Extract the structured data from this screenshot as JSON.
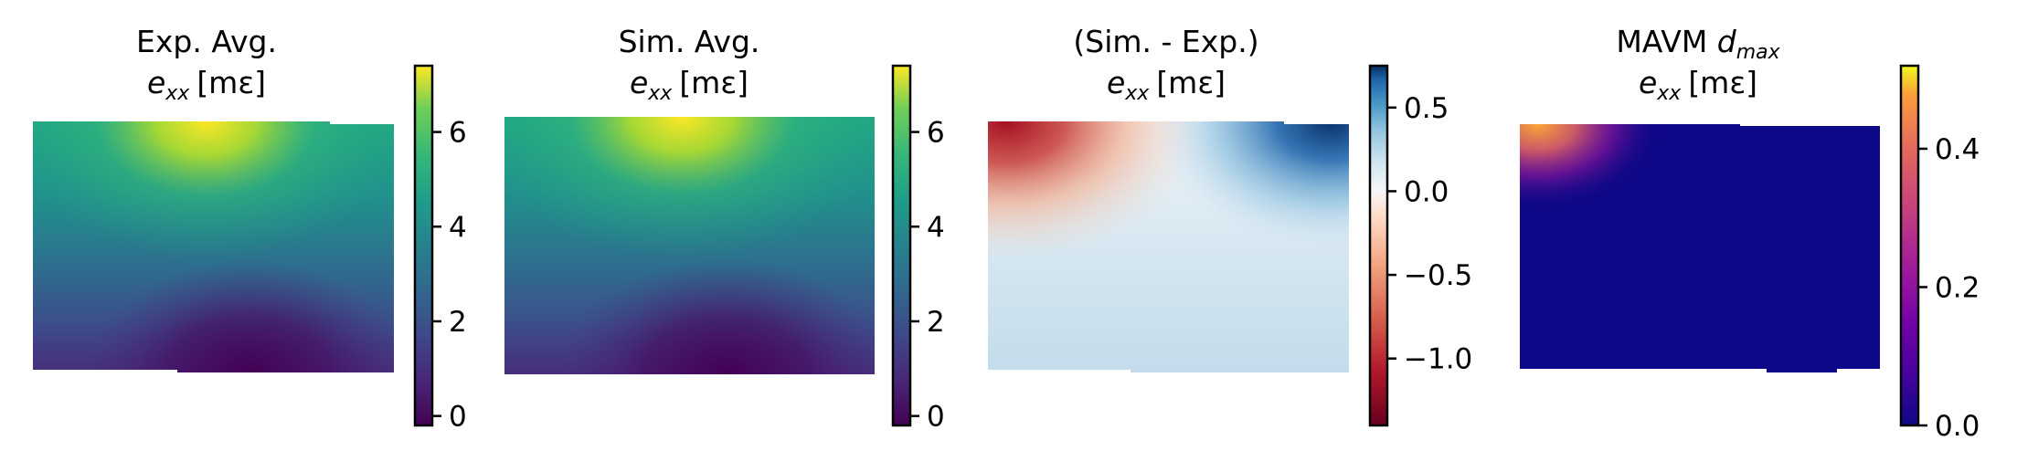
{
  "chart_data": [
    {
      "type": "heatmap",
      "title": "Exp. Avg.",
      "subtitle": "e",
      "subtitle_sub": "xx",
      "unit_text": "[mε]",
      "colormap": "viridis",
      "colorbar": {
        "range": [
          -0.2,
          7.4
        ],
        "ticks": [
          0,
          2,
          4,
          6
        ],
        "tick_labels": [
          "0",
          "2",
          "4",
          "6"
        ]
      },
      "field": {
        "description_values": {
          "top_center_max": 7.2,
          "center": 3.0,
          "bottom_center_min": -0.1
        }
      }
    },
    {
      "type": "heatmap",
      "title": "Sim. Avg.",
      "subtitle": "e",
      "subtitle_sub": "xx",
      "unit_text": "[mε]",
      "colormap": "viridis",
      "colorbar": {
        "range": [
          -0.2,
          7.4
        ],
        "ticks": [
          0,
          2,
          4,
          6
        ],
        "tick_labels": [
          "0",
          "2",
          "4",
          "6"
        ]
      },
      "field": {
        "description_values": {
          "top_center_max": 7.0,
          "center": 3.0,
          "bottom_center_min": -0.1
        }
      }
    },
    {
      "type": "heatmap",
      "title": "(Sim. - Exp.)",
      "subtitle": "e",
      "subtitle_sub": "xx",
      "unit_text": "[mε]",
      "colormap": "RdBu",
      "colorbar": {
        "range": [
          -1.4,
          0.75
        ],
        "ticks": [
          0.5,
          0.0,
          -0.5,
          -1.0
        ],
        "tick_labels": [
          "0.5",
          "0.0",
          "−0.5",
          "−1.0"
        ]
      },
      "field": {
        "description_values": {
          "top_left_min": -1.3,
          "top_right_max": 0.7,
          "lower_region": 0.2
        }
      }
    },
    {
      "type": "heatmap",
      "title": "MAVM ",
      "title_italic": "d",
      "title_sub": "max",
      "subtitle": "e",
      "subtitle_sub": "xx",
      "unit_text": "[mε]",
      "colormap": "plasma",
      "colorbar": {
        "range": [
          0.0,
          0.52
        ],
        "ticks": [
          0.4,
          0.2,
          0.0
        ],
        "tick_labels": [
          "0.4",
          "0.2",
          "0.0"
        ]
      },
      "field": {
        "description_values": {
          "top_left_max": 0.45,
          "elsewhere": 0.0
        }
      }
    }
  ]
}
